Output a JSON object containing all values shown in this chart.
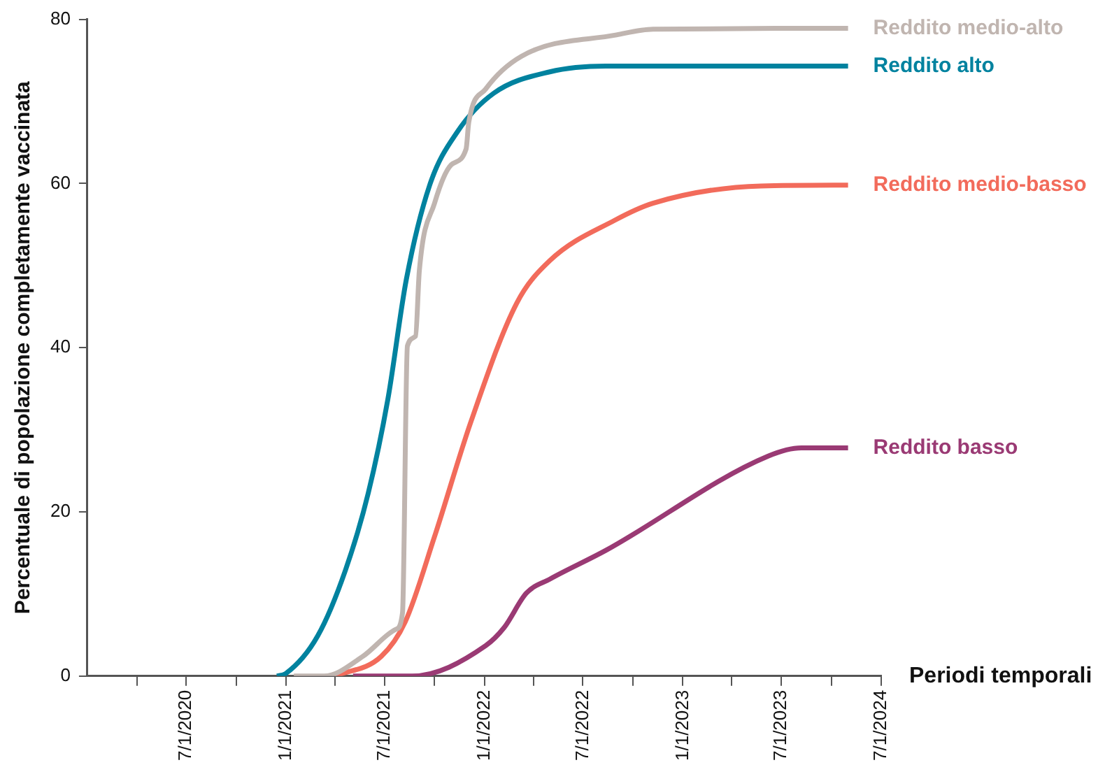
{
  "chart_data": {
    "type": "line",
    "ylabel": "Percentuale di popolazione completamente vaccinata",
    "xlabel": "Periodi temporali",
    "xlim": [
      "2020-01-01",
      "2024-01-01"
    ],
    "xticks": [
      {
        "value": "2020-04-01",
        "label": null
      },
      {
        "value": "2020-07-01",
        "label": "7/1/2020"
      },
      {
        "value": "2020-10-01",
        "label": null
      },
      {
        "value": "2021-01-01",
        "label": "1/1/2021"
      },
      {
        "value": "2021-04-01",
        "label": null
      },
      {
        "value": "2021-07-01",
        "label": "7/1/2021"
      },
      {
        "value": "2021-10-01",
        "label": null
      },
      {
        "value": "2022-01-01",
        "label": "1/1/2022"
      },
      {
        "value": "2022-04-01",
        "label": null
      },
      {
        "value": "2022-07-01",
        "label": "7/1/2022"
      },
      {
        "value": "2022-10-01",
        "label": null
      },
      {
        "value": "2023-01-01",
        "label": "1/1/2023"
      },
      {
        "value": "2023-04-01",
        "label": null
      },
      {
        "value": "2023-07-01",
        "label": "7/1/2023"
      },
      {
        "value": "2023-10-01",
        "label": null
      },
      {
        "value": "2024-01-01",
        "label": "7/1/2024"
      }
    ],
    "ylim": [
      0,
      80
    ],
    "yticks": [
      0,
      20,
      40,
      60,
      80
    ],
    "grid": false,
    "marker": "none",
    "line_style": "solid",
    "series": [
      {
        "name": "Reddito medio-alto",
        "color": "#c0b5b0",
        "x": [
          "2021-01-15",
          "2021-03-12",
          "2021-05-22",
          "2021-07-22",
          "2021-08-03",
          "2021-08-12",
          "2021-08-27",
          "2021-09-03",
          "2021-10-01",
          "2021-11-01",
          "2021-11-28",
          "2021-12-03",
          "2022-01-03",
          "2022-03-10",
          "2022-09-01",
          "2022-11-07",
          "2023-11-01"
        ],
        "values": [
          0,
          0,
          2.4,
          5.7,
          7.7,
          40.2,
          41.4,
          49.4,
          57.6,
          62.3,
          64.2,
          67.5,
          71.5,
          75.5,
          78.1,
          78.8,
          78.9
        ]
      },
      {
        "name": "Reddito alto",
        "color": "#00829f",
        "x": [
          "2020-12-15",
          "2020-12-31",
          "2021-02-28",
          "2021-04-20",
          "2021-06-01",
          "2021-07-07",
          "2021-08-10",
          "2021-09-22",
          "2021-11-12",
          "2022-01-18",
          "2022-05-01",
          "2022-08-12",
          "2023-11-01"
        ],
        "values": [
          0,
          0.3,
          4.9,
          12.9,
          22.3,
          33.7,
          48.3,
          59.8,
          66.3,
          71,
          73.6,
          74.3,
          74.3
        ]
      },
      {
        "name": "Reddito medio-basso",
        "color": "#f26b5b",
        "x": [
          "2021-04-01",
          "2021-06-25",
          "2021-08-08",
          "2021-10-01",
          "2021-12-07",
          "2022-03-01",
          "2022-05-01",
          "2022-08-28",
          "2022-11-07",
          "2023-05-25",
          "2023-11-01"
        ],
        "values": [
          0,
          2.4,
          6.6,
          17,
          31,
          45.4,
          50.6,
          55.5,
          57.6,
          59.7,
          59.8
        ]
      },
      {
        "name": "Reddito basso",
        "color": "#9a3a74",
        "x": [
          "2021-05-04",
          "2021-08-21",
          "2022-01-03",
          "2022-02-06",
          "2022-03-19",
          "2022-05-01",
          "2022-08-12",
          "2023-06-07",
          "2023-08-07",
          "2023-11-01"
        ],
        "values": [
          0,
          0,
          3.7,
          5.9,
          10.1,
          11.8,
          15.3,
          26.8,
          27.8,
          27.8
        ]
      }
    ]
  }
}
